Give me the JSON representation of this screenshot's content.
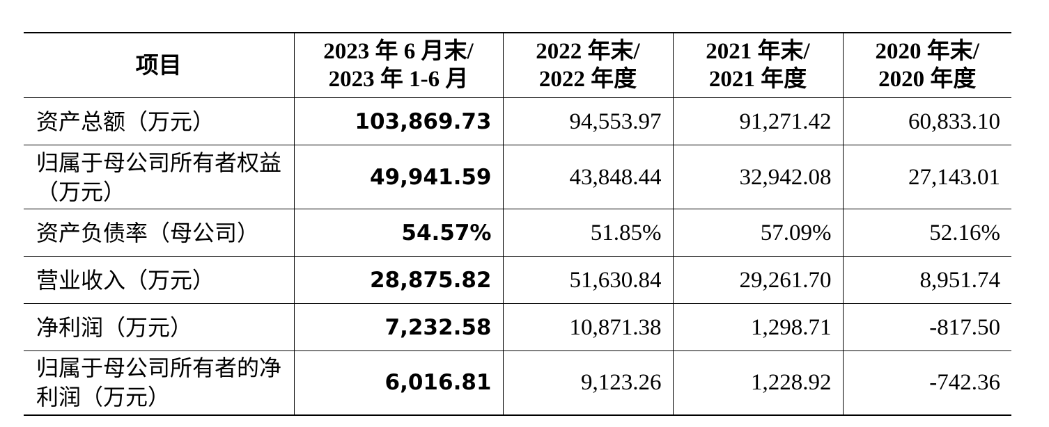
{
  "table": {
    "header": [
      [
        "项目"
      ],
      [
        "2023 年 6 月末/",
        "2023 年 1-6 月"
      ],
      [
        "2022 年末/",
        "2022 年度"
      ],
      [
        "2021 年末/",
        "2021 年度"
      ],
      [
        "2020 年末/",
        "2020 年度"
      ]
    ],
    "rows": [
      [
        "资产总额（万元）",
        "103,869.73",
        "94,553.97",
        "91,271.42",
        "60,833.10"
      ],
      [
        "归属于母公司所有者权益（万元）",
        "49,941.59",
        "43,848.44",
        "32,942.08",
        "27,143.01"
      ],
      [
        "资产负债率（母公司）",
        "54.57%",
        "51.85%",
        "57.09%",
        "52.16%"
      ],
      [
        "营业收入（万元）",
        "28,875.82",
        "51,630.84",
        "29,261.70",
        "8,951.74"
      ],
      [
        "净利润（万元）",
        "7,232.58",
        "10,871.38",
        "1,298.71",
        "-817.50"
      ],
      [
        "归属于母公司所有者的净利润（万元）",
        "6,016.81",
        "9,123.26",
        "1,228.92",
        "-742.36"
      ]
    ]
  }
}
